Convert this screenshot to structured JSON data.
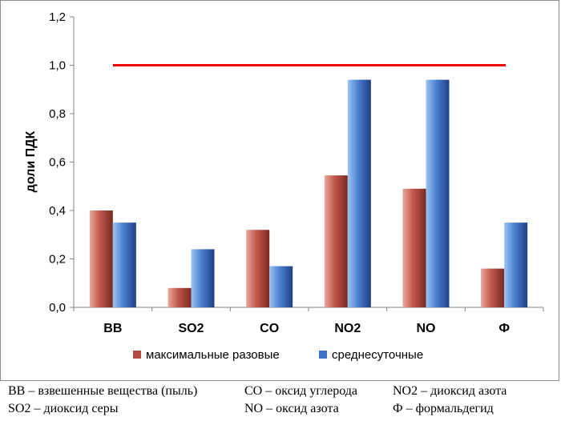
{
  "chart_data": {
    "type": "bar",
    "title": "",
    "xlabel": "",
    "ylabel": "доли ПДК",
    "ylim": [
      0,
      1.2
    ],
    "ytick_labels": [
      "0,0",
      "0,2",
      "0,4",
      "0,6",
      "0,8",
      "1,0",
      "1,2"
    ],
    "yticks": [
      0,
      0.2,
      0.4,
      0.6,
      0.8,
      1.0,
      1.2
    ],
    "categories": [
      "ВВ",
      "SO2",
      "CO",
      "NO2",
      "NO",
      "Ф"
    ],
    "series": [
      {
        "name": "максимальные разовые",
        "values": [
          0.4,
          0.08,
          0.32,
          0.545,
          0.49,
          0.16
        ]
      },
      {
        "name": "среднесуточные",
        "values": [
          0.35,
          0.24,
          0.17,
          0.94,
          0.94,
          0.35
        ]
      }
    ],
    "reference_line": {
      "value": 1.0,
      "color": "#ff0000"
    },
    "grid": false,
    "legend_position": "bottom",
    "colors": {
      "series1": "#b34a3f",
      "series2": "#3d72c4"
    }
  },
  "notes": {
    "row1": [
      "ВВ – взвешенные вещества (пыль)",
      "СО – оксид углерода",
      "NO2 – диоксид азота"
    ],
    "row2": [
      "SO2 – диоксид серы",
      "NO – оксид азота",
      "Ф – формальдегид"
    ]
  }
}
